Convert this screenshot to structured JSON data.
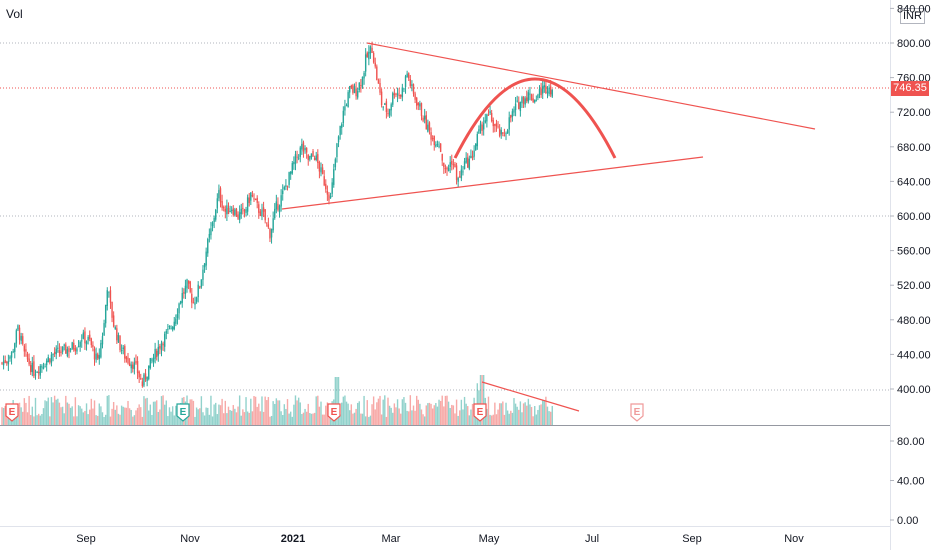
{
  "chart_data": {
    "type": "candlestick",
    "currency": "INR",
    "pane_label": "Vol",
    "last_price": "746.35",
    "price_axis": {
      "labels": [
        "840.00",
        "800.00",
        "760.00",
        "720.00",
        "680.00",
        "640.00",
        "600.00",
        "560.00",
        "520.00",
        "480.00",
        "440.00",
        "400.00"
      ],
      "ylim": [
        390,
        840
      ]
    },
    "volume_axis": {
      "labels": [
        "80.00",
        "40.00",
        "0.00"
      ],
      "ylim": [
        0,
        100
      ]
    },
    "x_labels": [
      "Sep",
      "Nov",
      "2021",
      "Mar",
      "May",
      "Jul",
      "Sep",
      "Nov"
    ],
    "x_bold": "2021",
    "earnings_markers": [
      {
        "label": "E",
        "color": "#ef5350"
      },
      {
        "label": "E",
        "color": "#26a69a"
      },
      {
        "label": "E",
        "color": "#ef5350"
      },
      {
        "label": "E",
        "color": "#ef5350"
      },
      {
        "label": "E",
        "color": "#ef9a9a"
      }
    ],
    "price_path": [
      [
        0,
        430
      ],
      [
        6,
        440
      ],
      [
        10,
        470
      ],
      [
        14,
        440
      ],
      [
        20,
        420
      ],
      [
        26,
        430
      ],
      [
        32,
        440
      ],
      [
        40,
        445
      ],
      [
        46,
        450
      ],
      [
        50,
        460
      ],
      [
        55,
        455
      ],
      [
        60,
        430
      ],
      [
        64,
        475
      ],
      [
        66,
        520
      ],
      [
        68,
        495
      ],
      [
        70,
        475
      ],
      [
        74,
        450
      ],
      [
        78,
        435
      ],
      [
        82,
        430
      ],
      [
        85,
        420
      ],
      [
        88,
        405
      ],
      [
        92,
        425
      ],
      [
        96,
        440
      ],
      [
        100,
        455
      ],
      [
        104,
        465
      ],
      [
        108,
        480
      ],
      [
        112,
        505
      ],
      [
        116,
        520
      ],
      [
        120,
        500
      ],
      [
        124,
        520
      ],
      [
        128,
        560
      ],
      [
        132,
        590
      ],
      [
        134,
        610
      ],
      [
        136,
        625
      ],
      [
        140,
        605
      ],
      [
        144,
        610
      ],
      [
        148,
        600
      ],
      [
        152,
        605
      ],
      [
        156,
        625
      ],
      [
        160,
        610
      ],
      [
        164,
        600
      ],
      [
        168,
        580
      ],
      [
        172,
        610
      ],
      [
        176,
        625
      ],
      [
        180,
        645
      ],
      [
        184,
        665
      ],
      [
        188,
        680
      ],
      [
        192,
        665
      ],
      [
        196,
        670
      ],
      [
        200,
        650
      ],
      [
        204,
        630
      ],
      [
        206,
        620
      ],
      [
        210,
        680
      ],
      [
        214,
        720
      ],
      [
        218,
        745
      ],
      [
        222,
        745
      ],
      [
        226,
        760
      ],
      [
        228,
        780
      ],
      [
        232,
        795
      ],
      [
        234,
        770
      ],
      [
        238,
        730
      ],
      [
        242,
        720
      ],
      [
        246,
        745
      ],
      [
        250,
        740
      ],
      [
        254,
        765
      ],
      [
        258,
        740
      ],
      [
        262,
        725
      ],
      [
        266,
        705
      ],
      [
        270,
        690
      ],
      [
        274,
        685
      ],
      [
        278,
        650
      ],
      [
        282,
        665
      ],
      [
        286,
        640
      ],
      [
        290,
        660
      ],
      [
        294,
        665
      ],
      [
        298,
        690
      ],
      [
        302,
        710
      ],
      [
        306,
        715
      ],
      [
        310,
        700
      ],
      [
        314,
        690
      ],
      [
        318,
        710
      ],
      [
        322,
        725
      ],
      [
        326,
        735
      ],
      [
        330,
        740
      ],
      [
        334,
        735
      ],
      [
        338,
        745
      ],
      [
        342,
        750
      ],
      [
        346,
        745
      ]
    ],
    "volume_hint": "volume bars under price, spike near May (~38) and Feb (~48)"
  }
}
